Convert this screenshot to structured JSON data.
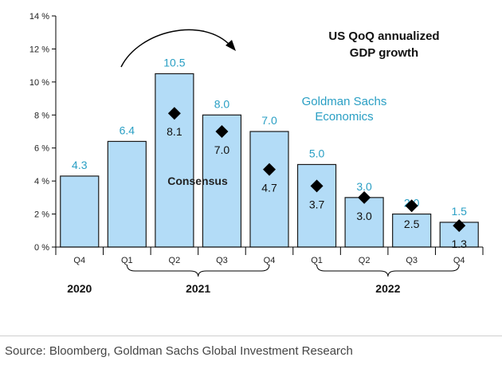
{
  "chart_data": {
    "type": "bar",
    "title_lines": [
      "US QoQ annualized",
      "GDP growth"
    ],
    "categories": [
      "Q4",
      "Q1",
      "Q2",
      "Q3",
      "Q4",
      "Q1",
      "Q2",
      "Q3",
      "Q4"
    ],
    "years": [
      {
        "label": "2020",
        "start": 0,
        "end": 0
      },
      {
        "label": "2021",
        "start": 1,
        "end": 4
      },
      {
        "label": "2022",
        "start": 5,
        "end": 8
      }
    ],
    "ylim": [
      0,
      14
    ],
    "yticks": [
      0,
      2,
      4,
      6,
      8,
      10,
      12,
      14
    ],
    "ytick_labels": [
      "0 %",
      "2 %",
      "4 %",
      "6 %",
      "8 %",
      "10 %",
      "12 %",
      "14 %"
    ],
    "series": [
      {
        "name": "Goldman Sachs Economics",
        "kind": "bar",
        "values": [
          4.3,
          6.4,
          10.5,
          8.0,
          7.0,
          5.0,
          3.0,
          2.0,
          1.5
        ],
        "labels": [
          "4.3",
          "6.4",
          "10.5",
          "8.0",
          "7.0",
          "5.0",
          "3.0",
          "2.0",
          "1.5"
        ]
      },
      {
        "name": "Consensus",
        "kind": "marker",
        "values": [
          null,
          null,
          8.1,
          7.0,
          4.7,
          3.7,
          3.0,
          2.5,
          1.3
        ],
        "labels": [
          "",
          "",
          "8.1",
          "7.0",
          "4.7",
          "3.7",
          "3.0",
          "2.5",
          "1.3"
        ]
      }
    ],
    "annotations": {
      "goldman_lines": [
        "Goldman Sachs",
        "Economics"
      ],
      "consensus": "Consensus"
    },
    "grid": false,
    "colors": {
      "bar_fill": "#b3dcf7",
      "bar_stroke": "#1a1a1a",
      "gs_text": "#2a9fc4",
      "marker": "#000000"
    }
  },
  "source": "Source: Bloomberg, Goldman Sachs Global Investment Research"
}
